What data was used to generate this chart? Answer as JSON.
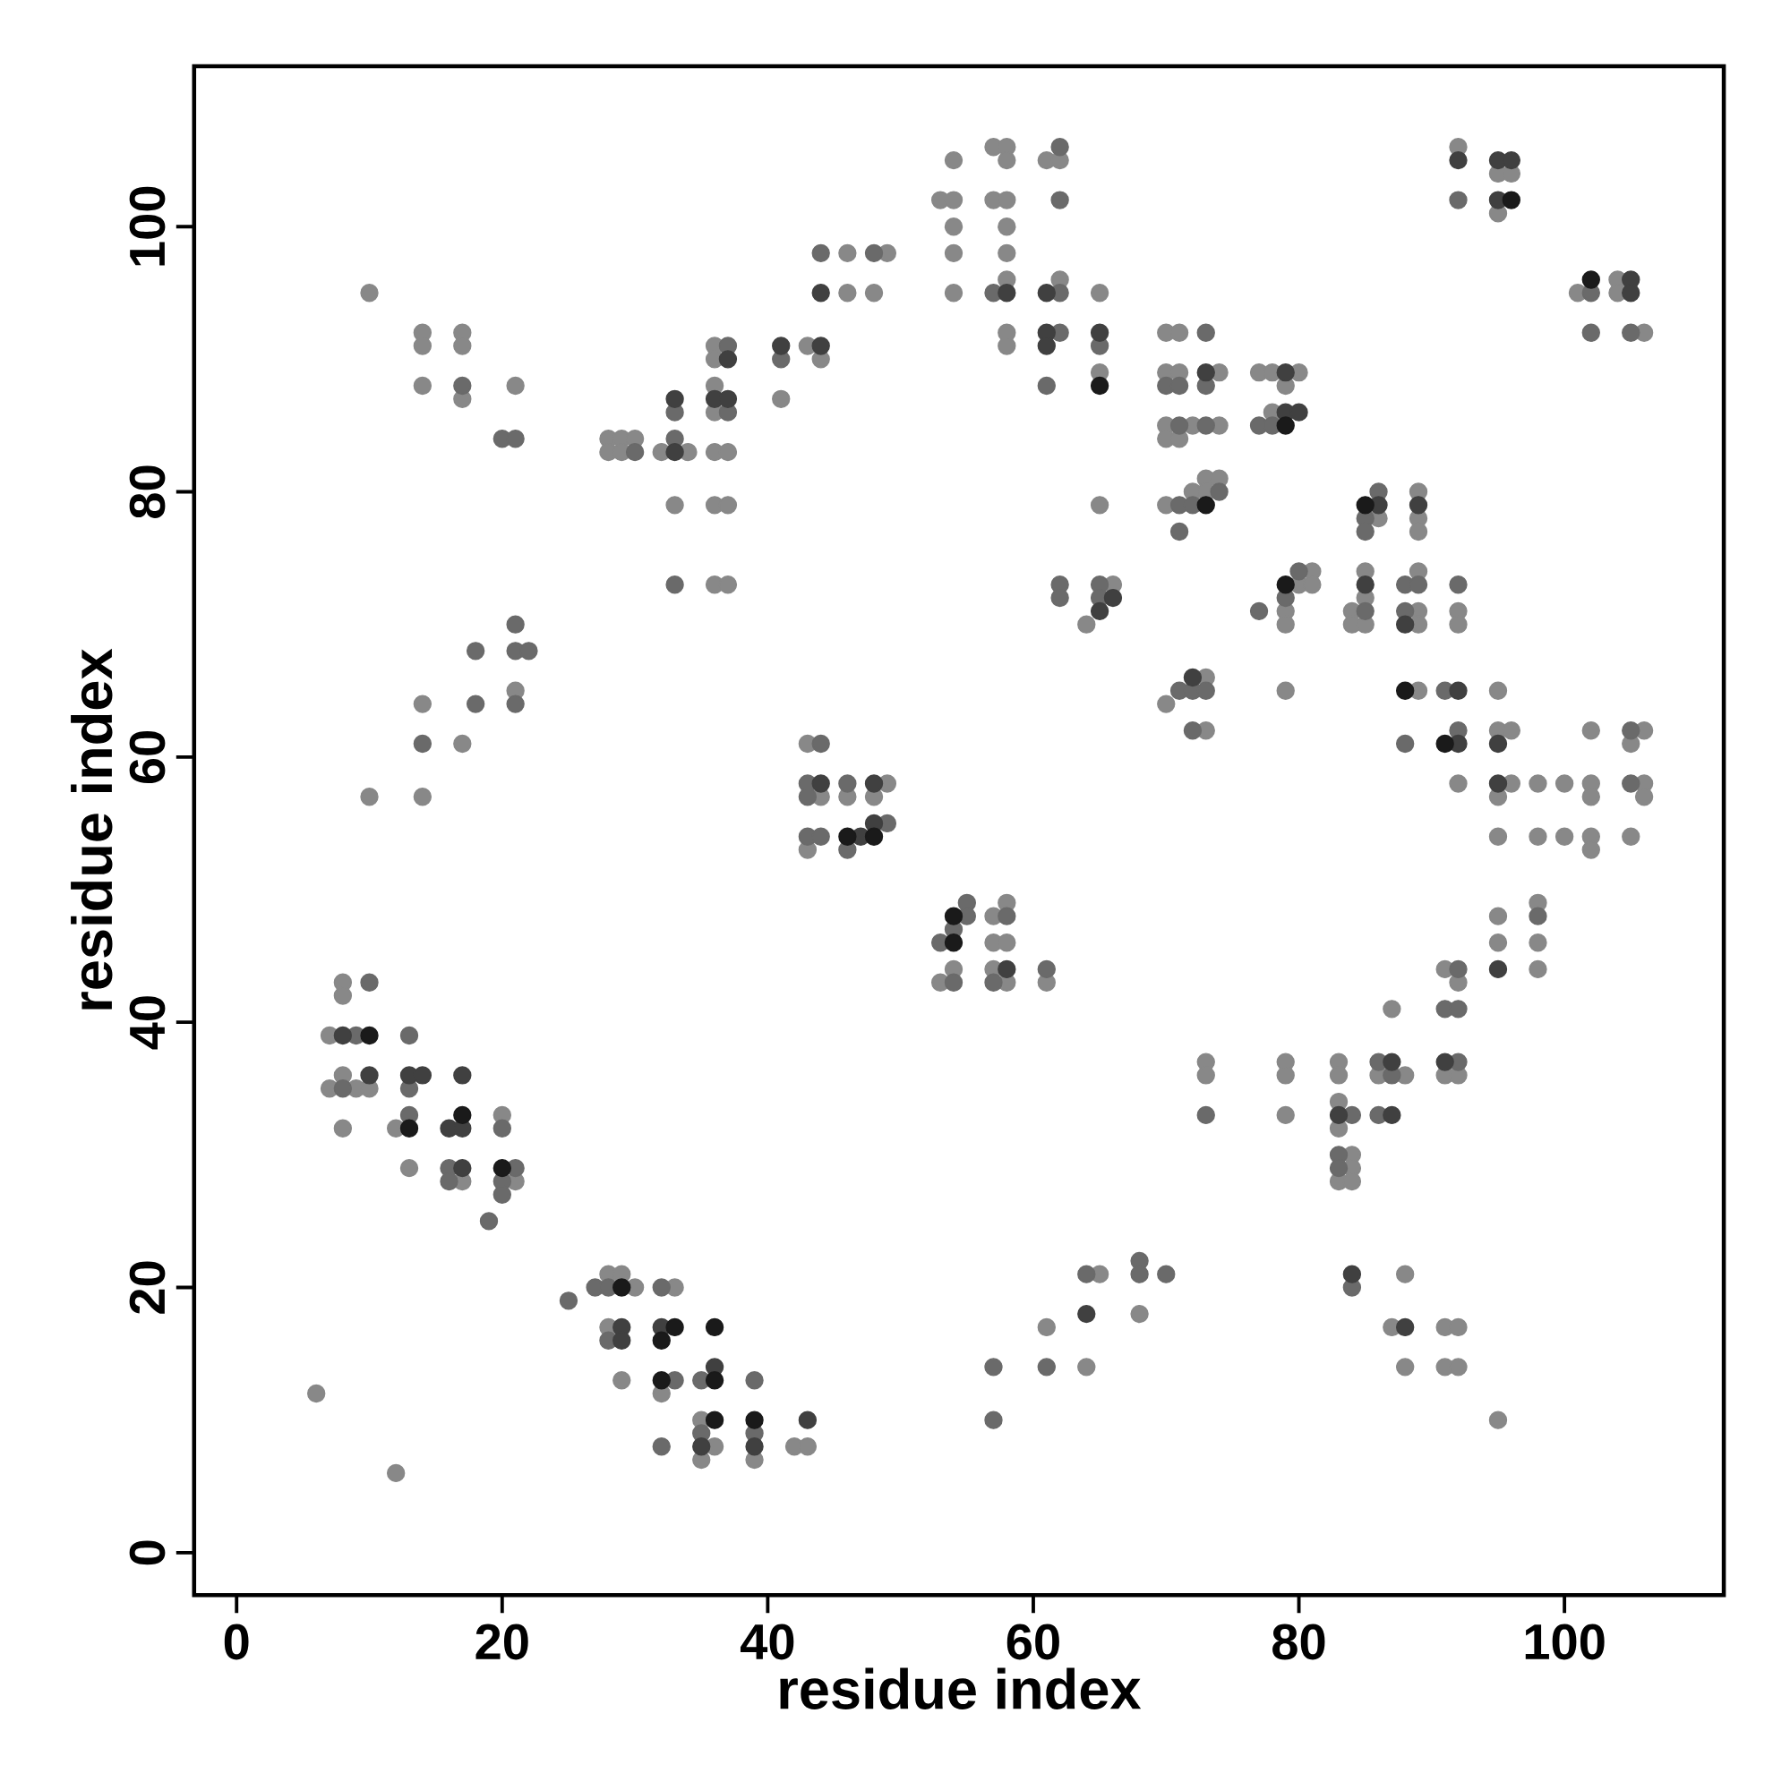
{
  "chart_data": {
    "type": "scatter",
    "xlabel": "residue index",
    "ylabel": "residue index",
    "xlim": [
      -3.2,
      112
    ],
    "ylim": [
      -3.2,
      112.1
    ],
    "xticks": [
      0,
      20,
      40,
      60,
      80,
      100
    ],
    "yticks": [
      0,
      20,
      40,
      60,
      80,
      100
    ],
    "grid": false,
    "marker": "circle",
    "series": [
      {
        "color": "#888888",
        "x": [
          6,
          7,
          7,
          8,
          8,
          8,
          8,
          9,
          10,
          10,
          10,
          12,
          12,
          13,
          14,
          14,
          14,
          14,
          14,
          17,
          17,
          17,
          17,
          17,
          20,
          21,
          21,
          21,
          28,
          28,
          28,
          28,
          29,
          29,
          29,
          29,
          30,
          30,
          32,
          32,
          33,
          33,
          34,
          35,
          35,
          36,
          36,
          36,
          36,
          36,
          36,
          36,
          36,
          37,
          37,
          37,
          39,
          41,
          42,
          43,
          43,
          43,
          43,
          44,
          44,
          46,
          46,
          46,
          48,
          48,
          49,
          49,
          53,
          53,
          54,
          54,
          54,
          54,
          54,
          54,
          57,
          57,
          57,
          57,
          57,
          58,
          58,
          58,
          58,
          58,
          58,
          58,
          58,
          58,
          58,
          58,
          61,
          61,
          61,
          62,
          62,
          64,
          64,
          65,
          65,
          65,
          65,
          66,
          68,
          70,
          70,
          70,
          70,
          70,
          70,
          71,
          71,
          71,
          72,
          72,
          73,
          73,
          73,
          73,
          73,
          73,
          74,
          74,
          74,
          77,
          78,
          78,
          79,
          79,
          79,
          79,
          79,
          79,
          79,
          80,
          80,
          81,
          81,
          83,
          83,
          83,
          83,
          83,
          84,
          84,
          84,
          84,
          84,
          85,
          85,
          85,
          86,
          86,
          87,
          87,
          88,
          88,
          88,
          89,
          89,
          89,
          89,
          89,
          89,
          89,
          91,
          91,
          91,
          91,
          92,
          92,
          92,
          92,
          92,
          92,
          92,
          92,
          95,
          95,
          95,
          95,
          95,
          95,
          95,
          95,
          95,
          96,
          96,
          96,
          98,
          98,
          98,
          98,
          98,
          100,
          100,
          101,
          102,
          102,
          102,
          102,
          102,
          104,
          104,
          105,
          105,
          106,
          106,
          106,
          106
        ],
        "values": [
          12,
          39,
          35,
          43,
          42,
          36,
          32,
          35,
          95,
          57,
          35,
          32,
          6,
          29,
          92,
          91,
          88,
          64,
          57,
          92,
          91,
          87,
          61,
          28,
          33,
          88,
          65,
          28,
          84,
          83,
          21,
          17,
          84,
          83,
          21,
          13,
          84,
          20,
          83,
          12,
          79,
          20,
          83,
          10,
          7,
          91,
          90,
          88,
          86,
          83,
          79,
          73,
          8,
          83,
          79,
          73,
          7,
          87,
          8,
          91,
          61,
          53,
          8,
          90,
          57,
          98,
          95,
          57,
          95,
          57,
          98,
          58,
          102,
          43,
          105,
          102,
          100,
          98,
          95,
          44,
          106,
          102,
          48,
          46,
          44,
          106,
          105,
          102,
          100,
          98,
          96,
          92,
          91,
          49,
          46,
          43,
          105,
          43,
          17,
          105,
          96,
          70,
          14,
          95,
          89,
          79,
          21,
          73,
          18,
          92,
          89,
          85,
          84,
          79,
          64,
          92,
          89,
          84,
          85,
          80,
          81,
          80,
          66,
          62,
          37,
          36,
          89,
          85,
          81,
          89,
          89,
          86,
          88,
          71,
          70,
          65,
          37,
          36,
          33,
          89,
          73,
          74,
          73,
          37,
          36,
          34,
          32,
          28,
          71,
          70,
          30,
          29,
          28,
          74,
          72,
          70,
          78,
          36,
          41,
          17,
          36,
          21,
          14,
          80,
          78,
          77,
          74,
          71,
          70,
          65,
          44,
          36,
          17,
          14,
          106,
          71,
          70,
          58,
          43,
          36,
          17,
          14,
          104,
          101,
          65,
          62,
          57,
          54,
          48,
          46,
          10,
          104,
          62,
          58,
          58,
          54,
          49,
          46,
          44,
          58,
          54,
          95,
          62,
          58,
          57,
          54,
          53,
          96,
          95,
          61,
          54,
          92,
          62,
          58,
          57
        ]
      },
      {
        "color": "#6a6a6a",
        "x": [
          8,
          9,
          10,
          13,
          13,
          13,
          14,
          16,
          16,
          17,
          18,
          18,
          19,
          20,
          20,
          20,
          20,
          21,
          21,
          21,
          21,
          21,
          22,
          25,
          27,
          28,
          28,
          30,
          32,
          32,
          33,
          33,
          33,
          33,
          35,
          35,
          37,
          37,
          39,
          39,
          41,
          43,
          43,
          43,
          44,
          44,
          44,
          46,
          46,
          48,
          49,
          53,
          54,
          54,
          55,
          55,
          57,
          57,
          57,
          57,
          58,
          61,
          61,
          61,
          62,
          62,
          62,
          62,
          62,
          62,
          64,
          65,
          65,
          65,
          68,
          68,
          70,
          70,
          71,
          71,
          71,
          71,
          71,
          72,
          72,
          72,
          73,
          73,
          73,
          73,
          73,
          74,
          77,
          77,
          78,
          79,
          80,
          83,
          83,
          84,
          84,
          85,
          85,
          85,
          86,
          86,
          86,
          87,
          88,
          88,
          88,
          89,
          91,
          91,
          92,
          92,
          92,
          92,
          92,
          92,
          98,
          102,
          102,
          105,
          105,
          105
        ],
        "values": [
          35,
          39,
          43,
          39,
          35,
          33,
          61,
          29,
          28,
          88,
          68,
          64,
          25,
          84,
          32,
          28,
          27,
          84,
          70,
          68,
          64,
          29,
          68,
          19,
          20,
          20,
          16,
          83,
          20,
          8,
          86,
          84,
          73,
          13,
          13,
          9,
          91,
          86,
          13,
          9,
          90,
          58,
          57,
          54,
          98,
          61,
          54,
          58,
          53,
          98,
          55,
          46,
          47,
          43,
          49,
          48,
          95,
          43,
          14,
          10,
          48,
          88,
          44,
          14,
          106,
          102,
          95,
          92,
          73,
          72,
          21,
          91,
          73,
          72,
          22,
          21,
          88,
          21,
          88,
          85,
          79,
          77,
          65,
          79,
          65,
          62,
          92,
          88,
          85,
          65,
          33,
          80,
          85,
          71,
          85,
          72,
          74,
          30,
          29,
          33,
          20,
          78,
          77,
          71,
          80,
          37,
          33,
          36,
          73,
          71,
          61,
          73,
          65,
          41,
          102,
          73,
          62,
          44,
          41,
          37,
          48,
          95,
          92,
          92,
          62,
          58
        ]
      },
      {
        "color": "#404040",
        "x": [
          8,
          10,
          13,
          14,
          16,
          17,
          17,
          17,
          29,
          29,
          32,
          33,
          33,
          35,
          36,
          36,
          37,
          37,
          39,
          41,
          43,
          44,
          44,
          44,
          47,
          48,
          48,
          58,
          58,
          61,
          61,
          61,
          64,
          65,
          65,
          66,
          72,
          73,
          79,
          79,
          80,
          83,
          84,
          85,
          86,
          87,
          87,
          88,
          88,
          89,
          91,
          92,
          92,
          92,
          95,
          95,
          95,
          95,
          95,
          96,
          105,
          105
        ],
        "values": [
          39,
          36,
          36,
          36,
          32,
          36,
          32,
          29,
          17,
          16,
          17,
          87,
          83,
          8,
          87,
          14,
          90,
          87,
          8,
          91,
          10,
          95,
          91,
          58,
          54,
          58,
          55,
          95,
          44,
          95,
          92,
          91,
          18,
          92,
          71,
          72,
          66,
          89,
          89,
          86,
          86,
          33,
          21,
          73,
          79,
          37,
          33,
          70,
          17,
          79,
          37,
          105,
          65,
          61,
          105,
          102,
          61,
          58,
          44,
          105,
          96,
          95
        ]
      },
      {
        "color": "#1a1a1a",
        "x": [
          10,
          13,
          17,
          20,
          29,
          32,
          32,
          33,
          36,
          36,
          36,
          39,
          46,
          48,
          54,
          54,
          65,
          73,
          79,
          79,
          85,
          88,
          91,
          96,
          102
        ],
        "values": [
          39,
          32,
          33,
          29,
          20,
          16,
          13,
          17,
          17,
          13,
          10,
          10,
          54,
          54,
          48,
          46,
          88,
          79,
          85,
          73,
          79,
          65,
          61,
          102,
          96
        ]
      }
    ]
  }
}
